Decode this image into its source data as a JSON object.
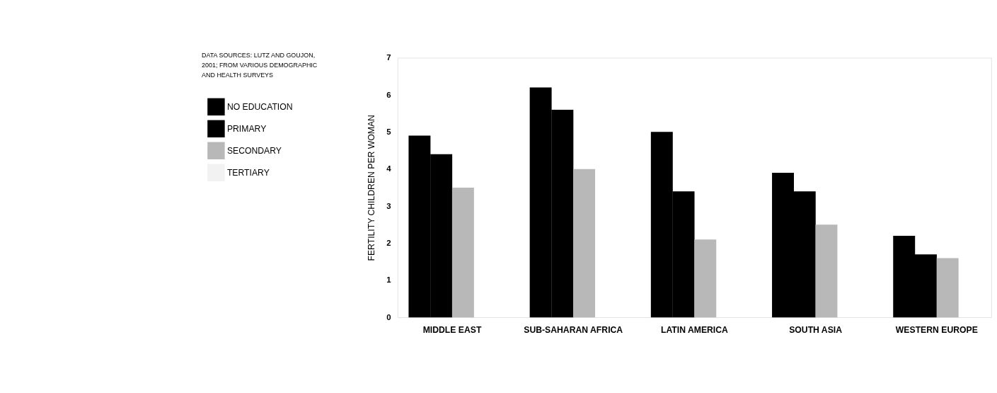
{
  "chart_data": {
    "type": "bar",
    "ylabel": "FERTILITY CHILDREN PER WOMAN",
    "categories": [
      "MIDDLE EAST",
      "SUB-SAHARAN AFRICA",
      "LATIN AMERICA",
      "SOUTH ASIA",
      "WESTERN EUROPE"
    ],
    "series": [
      {
        "name": "NO EDUCATION",
        "color": "#000000",
        "values": [
          4.9,
          6.2,
          5.0,
          3.9,
          2.2
        ]
      },
      {
        "name": "PRIMARY",
        "color": "#000000",
        "values": [
          4.4,
          5.6,
          3.4,
          3.4,
          1.7
        ]
      },
      {
        "name": "SECONDARY",
        "color": "#b8b8b8",
        "values": [
          3.5,
          4.0,
          2.1,
          2.5,
          1.6
        ]
      },
      {
        "name": "TERTIARY",
        "color": "#f2f2f2",
        "values": [
          null,
          null,
          null,
          null,
          null
        ]
      }
    ],
    "ylim": [
      0,
      7
    ],
    "yticks": [
      0,
      1,
      2,
      3,
      4,
      5,
      6,
      7
    ],
    "grid": false,
    "legend": "top left",
    "annotations": [
      "DATA SOURCES: LUTZ AND GOUJON, 2001; FROM VARIOUS DEMOGRAPHIC AND HEALTH SURVEYS"
    ]
  }
}
